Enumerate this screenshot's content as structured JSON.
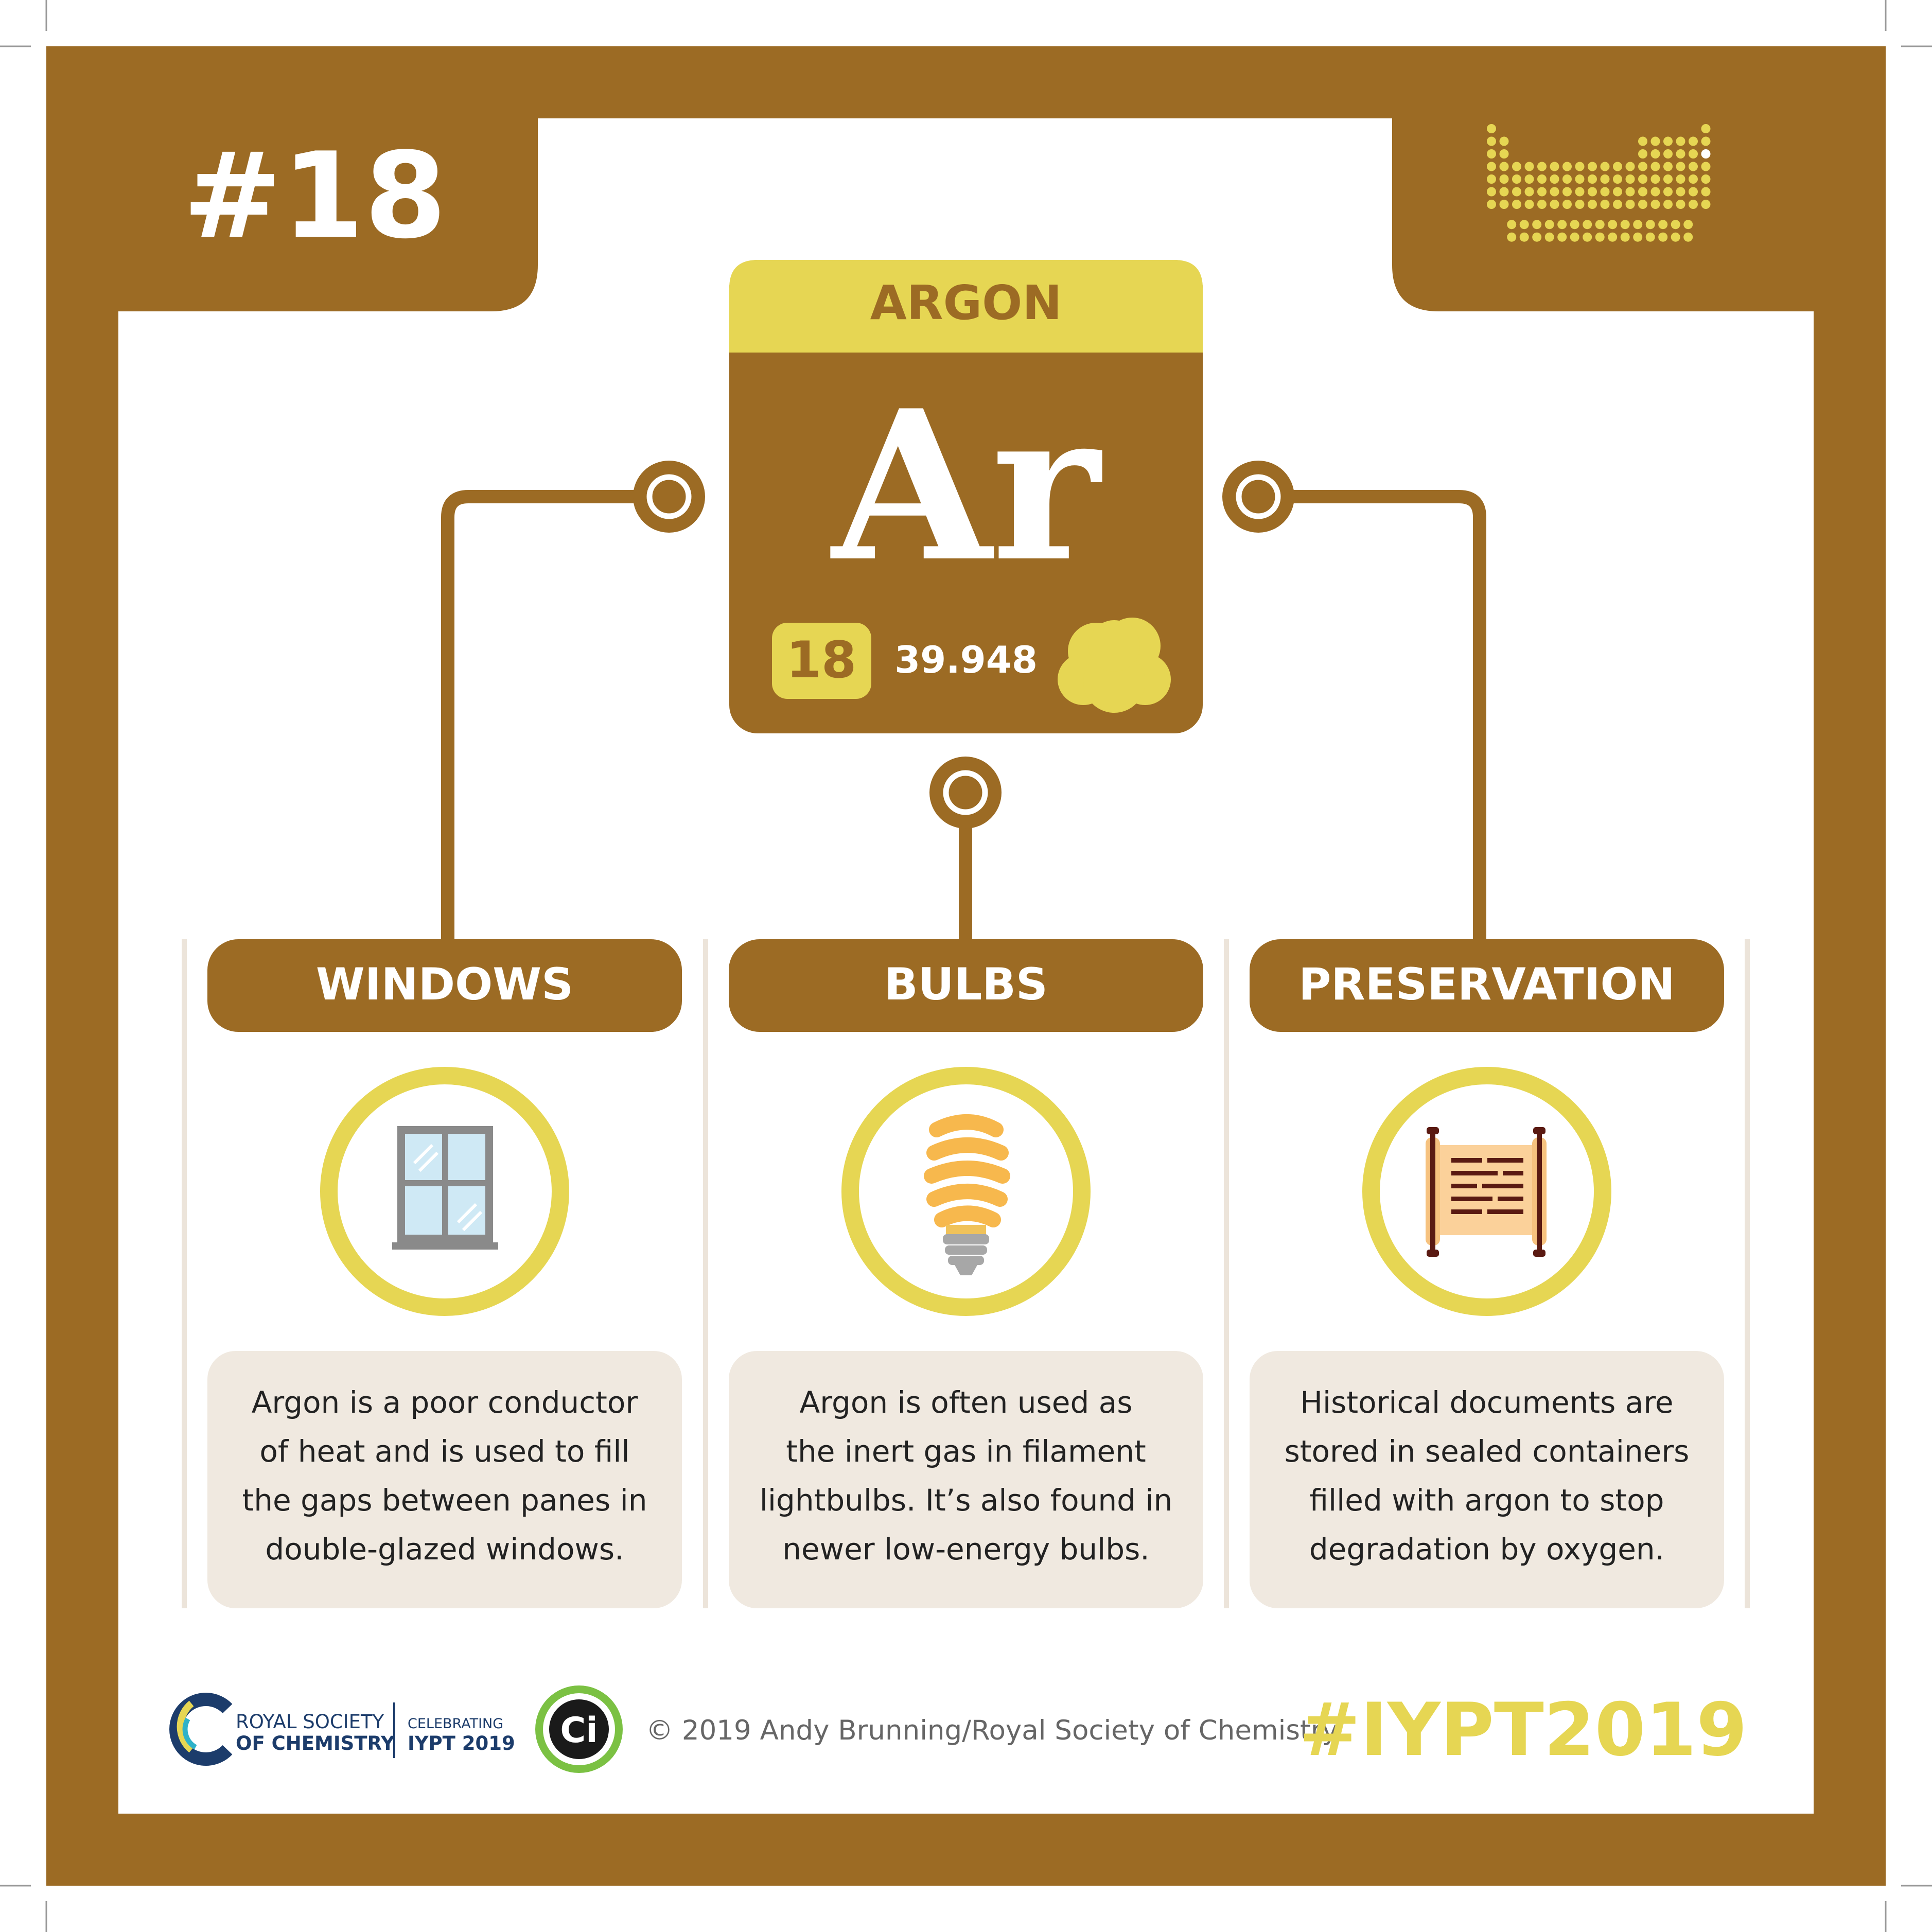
{
  "colors": {
    "brown": "#9C6B24",
    "yellow": "#E6D653",
    "beige": "#F0E9E0",
    "divider": "#ECE4DA",
    "white": "#FFFFFF",
    "grey_text": "#666666",
    "bulb_orange": "#F7B84D",
    "scroll_paper": "#FBD19A",
    "scroll_ink": "#5A1A12",
    "window_glass": "#CFE9F5",
    "window_frame": "#8A8A8A"
  },
  "header": {
    "number": "#18",
    "periodic_table_icon": "periodic-table-icon"
  },
  "element": {
    "name": "ARGON",
    "symbol": "Ar",
    "atomic_number": "18",
    "atomic_mass": "39.948",
    "state_icon": "gas-cloud-icon"
  },
  "uses": [
    {
      "title": "WINDOWS",
      "icon": "window-icon",
      "lines": [
        "Argon is a poor conductor",
        "of heat and is used to fill",
        "the gaps between panes in",
        "double-glazed windows."
      ]
    },
    {
      "title": "BULBS",
      "icon": "lightbulb-icon",
      "lines": [
        "Argon is often used as",
        "the inert gas in filament",
        "lightbulbs. It’s also found in",
        "newer low-energy bulbs."
      ]
    },
    {
      "title": "PRESERVATION",
      "icon": "scroll-icon",
      "lines": [
        "Historical documents are",
        "stored in sealed containers",
        "filled with argon to stop",
        "degradation by oxygen."
      ]
    }
  ],
  "footer": {
    "rsc_line1": "ROYAL SOCIETY",
    "rsc_line2": "OF CHEMISTRY",
    "iypt_line1": "CELEBRATING",
    "iypt_line2": "IYPT 2019",
    "ci_logo": "Ci",
    "copyright": "© 2019 Andy Brunning/Royal Society of Chemistry",
    "hashtag": "#IYPT2019"
  }
}
